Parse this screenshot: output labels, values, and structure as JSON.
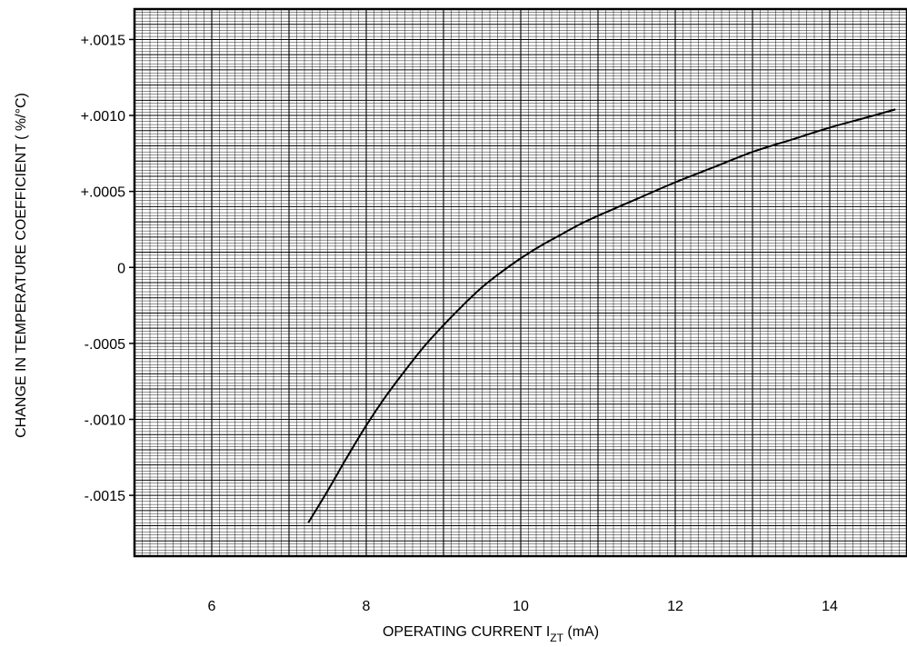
{
  "chart_data": {
    "type": "line",
    "title": "",
    "xlabel": {
      "prefix": "OPERATING CURRENT I",
      "subscript": "ZT",
      "suffix": " (mA)"
    },
    "ylabel": "CHANGE IN TEMPERATURE COEFFICIENT ( %/°C)",
    "xlim": [
      5,
      15
    ],
    "ylim": [
      -0.0019,
      0.0017
    ],
    "x_ticks": [
      {
        "value": 6,
        "label": "6"
      },
      {
        "value": 8,
        "label": "8"
      },
      {
        "value": 10,
        "label": "10"
      },
      {
        "value": 12,
        "label": "12"
      },
      {
        "value": 14,
        "label": "14"
      }
    ],
    "y_ticks": [
      {
        "value": 0.0015,
        "label": "+.0015"
      },
      {
        "value": 0.001,
        "label": "+.0010"
      },
      {
        "value": 0.0005,
        "label": "+.0005"
      },
      {
        "value": 0,
        "label": "0"
      },
      {
        "value": -0.0005,
        "label": "-.0005"
      },
      {
        "value": -0.001,
        "label": "-.0010"
      },
      {
        "value": -0.0015,
        "label": "-.0015"
      }
    ],
    "grid": true,
    "grid_minor_per_major": 10,
    "line_color": "#000000",
    "grid_color": "#000000",
    "series": [
      {
        "x": [
          7.25,
          7.5,
          7.75,
          8.0,
          8.25,
          8.5,
          8.75,
          9.0,
          9.25,
          9.5,
          9.75,
          10.0,
          10.25,
          10.5,
          10.75,
          11.0,
          11.5,
          12.0,
          12.5,
          13.0,
          13.5,
          14.0,
          14.5,
          14.85
        ],
        "y": [
          -0.00168,
          -0.00147,
          -0.00125,
          -0.00104,
          -0.00085,
          -0.00068,
          -0.00052,
          -0.00038,
          -0.00025,
          -0.00013,
          -3e-05,
          6e-05,
          0.00014,
          0.00021,
          0.00028,
          0.00034,
          0.00045,
          0.00056,
          0.00066,
          0.00076,
          0.00084,
          0.00092,
          0.00099,
          0.00104
        ]
      }
    ]
  }
}
